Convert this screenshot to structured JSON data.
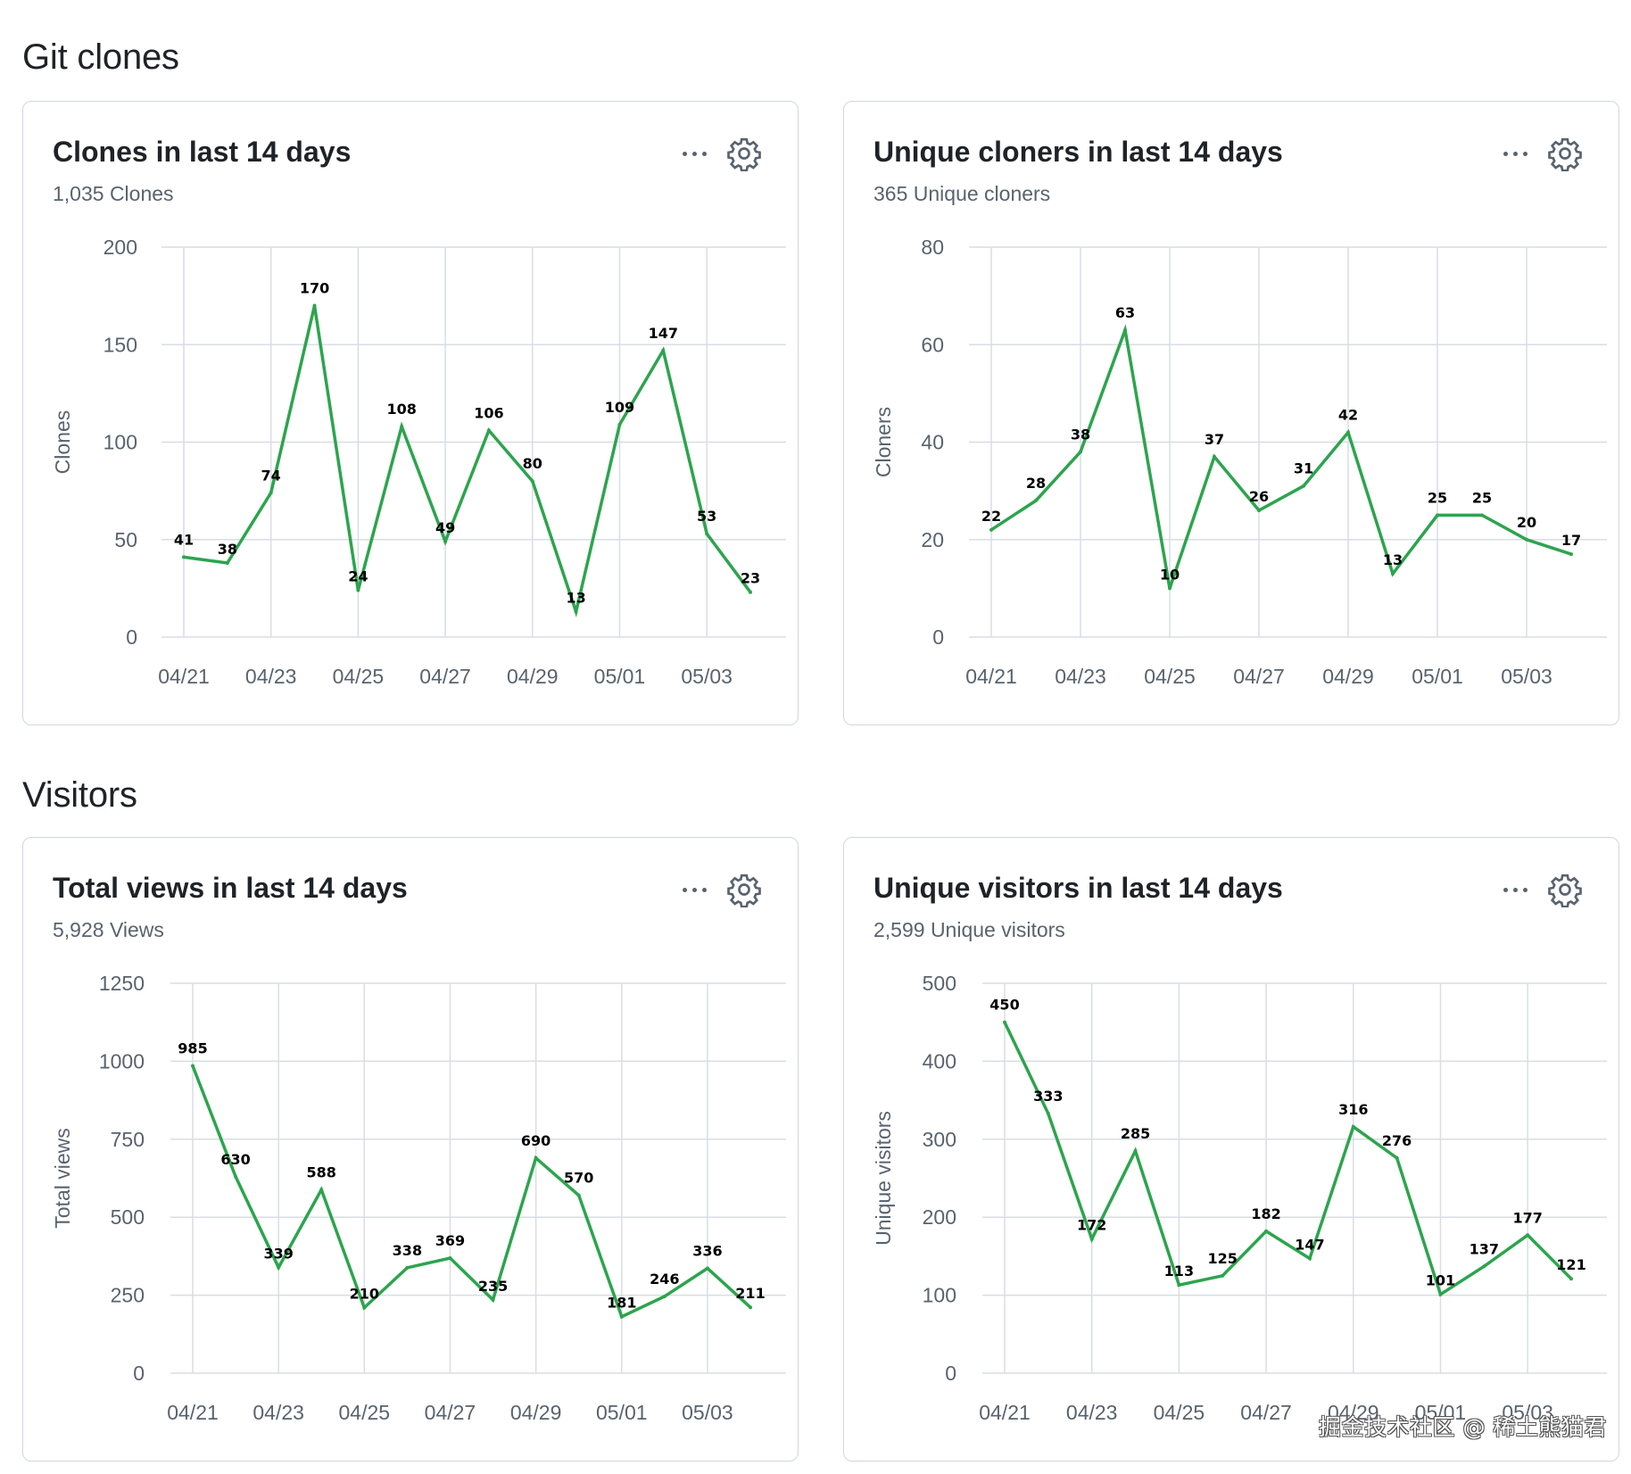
{
  "sections": {
    "clones": "Git clones",
    "visitors": "Visitors"
  },
  "cards": {
    "clones": {
      "title": "Clones in last 14 days",
      "subtitle": "1,035 Clones"
    },
    "cloners": {
      "title": "Unique cloners in last 14 days",
      "subtitle": "365 Unique cloners"
    },
    "views": {
      "title": "Total views in last 14 days",
      "subtitle": "5,928 Views"
    },
    "visitors": {
      "title": "Unique visitors in last 14 days",
      "subtitle": "2,599 Unique visitors"
    }
  },
  "icons": {
    "more": "kebab-horizontal-icon",
    "settings": "gear-icon"
  },
  "colors": {
    "line": "#2da44e",
    "grid": "#d8dee4"
  },
  "watermark": "掘金技术社区 @ 稀土熊猫君",
  "chart_data": [
    {
      "id": "clones",
      "type": "line",
      "x": [
        "04/21",
        "04/22",
        "04/23",
        "04/24",
        "04/25",
        "04/26",
        "04/27",
        "04/28",
        "04/29",
        "04/30",
        "05/01",
        "05/02",
        "05/03",
        "05/04"
      ],
      "x_tick_labels": [
        "04/21",
        "04/23",
        "04/25",
        "04/27",
        "04/29",
        "05/01",
        "05/03"
      ],
      "values": [
        41,
        38,
        74,
        170,
        24,
        108,
        49,
        106,
        80,
        13,
        109,
        147,
        53,
        23
      ],
      "ylabel": "Clones",
      "ylim": [
        0,
        200
      ],
      "yticks": [
        0,
        50,
        100,
        150,
        200
      ],
      "grid": true
    },
    {
      "id": "cloners",
      "type": "line",
      "x": [
        "04/21",
        "04/22",
        "04/23",
        "04/24",
        "04/25",
        "04/26",
        "04/27",
        "04/28",
        "04/29",
        "04/30",
        "05/01",
        "05/02",
        "05/03",
        "05/04"
      ],
      "x_tick_labels": [
        "04/21",
        "04/23",
        "04/25",
        "04/27",
        "04/29",
        "05/01",
        "05/03"
      ],
      "values": [
        22,
        28,
        38,
        63,
        10,
        37,
        26,
        31,
        42,
        13,
        25,
        25,
        20,
        17
      ],
      "ylabel": "Cloners",
      "ylim": [
        0,
        80
      ],
      "yticks": [
        0,
        20,
        40,
        60,
        80
      ],
      "grid": true
    },
    {
      "id": "views",
      "type": "line",
      "x": [
        "04/21",
        "04/22",
        "04/23",
        "04/24",
        "04/25",
        "04/26",
        "04/27",
        "04/28",
        "04/29",
        "04/30",
        "05/01",
        "05/02",
        "05/03",
        "05/04"
      ],
      "x_tick_labels": [
        "04/21",
        "04/23",
        "04/25",
        "04/27",
        "04/29",
        "05/01",
        "05/03"
      ],
      "values": [
        985,
        630,
        339,
        588,
        210,
        338,
        369,
        235,
        690,
        570,
        181,
        246,
        336,
        211
      ],
      "ylabel": "Total views",
      "ylim": [
        0,
        1250
      ],
      "yticks": [
        0,
        250,
        500,
        750,
        1000,
        1250
      ],
      "grid": true
    },
    {
      "id": "visitors",
      "type": "line",
      "x": [
        "04/21",
        "04/22",
        "04/23",
        "04/24",
        "04/25",
        "04/26",
        "04/27",
        "04/28",
        "04/29",
        "04/30",
        "05/01",
        "05/02",
        "05/03",
        "05/04"
      ],
      "x_tick_labels": [
        "04/21",
        "04/23",
        "04/25",
        "04/27",
        "04/29",
        "05/01",
        "05/03"
      ],
      "values": [
        450,
        333,
        172,
        285,
        113,
        125,
        182,
        147,
        316,
        276,
        101,
        137,
        177,
        121
      ],
      "ylabel": "Unique visitors",
      "ylim": [
        0,
        500
      ],
      "yticks": [
        0,
        100,
        200,
        300,
        400,
        500
      ],
      "grid": true
    }
  ]
}
